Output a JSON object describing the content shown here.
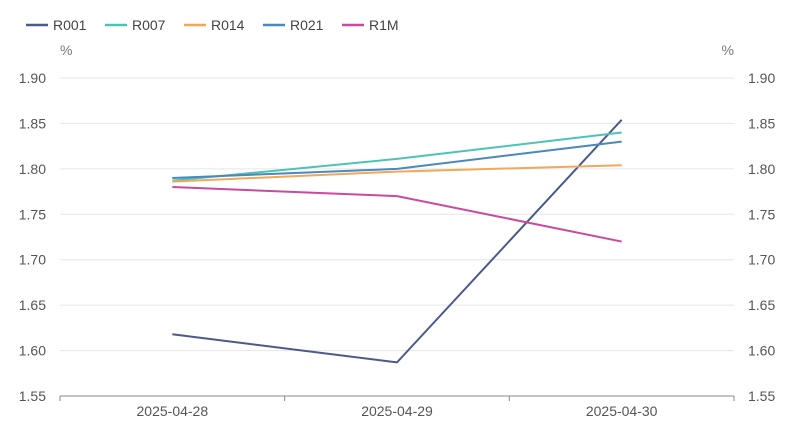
{
  "chart_data": {
    "type": "line",
    "title": "",
    "xlabel": "",
    "ylabel_left": "%",
    "ylabel_right": "%",
    "categories": [
      "2025-04-28",
      "2025-04-29",
      "2025-04-30"
    ],
    "ylim": [
      1.55,
      1.9
    ],
    "yticks": [
      "1.55",
      "1.60",
      "1.65",
      "1.70",
      "1.75",
      "1.80",
      "1.85",
      "1.90"
    ],
    "grid": true,
    "legend_position": "top-left",
    "series": [
      {
        "name": "R001",
        "color": "#4b5a8a",
        "values": [
          1.618,
          1.587,
          1.854
        ]
      },
      {
        "name": "R007",
        "color": "#4cc3b3",
        "values": [
          1.787,
          1.811,
          1.84
        ]
      },
      {
        "name": "R014",
        "color": "#f0a85a",
        "values": [
          1.786,
          1.797,
          1.804
        ]
      },
      {
        "name": "R021",
        "color": "#4a88bd",
        "values": [
          1.79,
          1.8,
          1.83
        ]
      },
      {
        "name": "R1M",
        "color": "#c94a9e",
        "values": [
          1.78,
          1.77,
          1.72
        ]
      }
    ]
  }
}
